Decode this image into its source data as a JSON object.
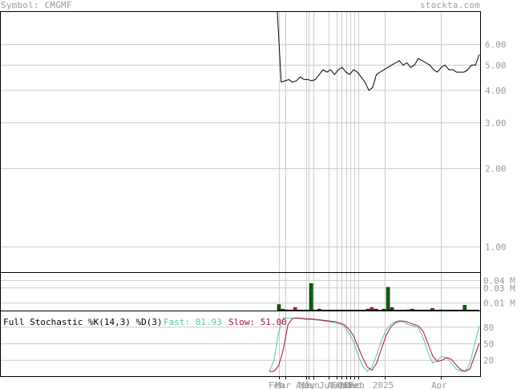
{
  "header": {
    "symbol_label": "Symbol: CMGMF",
    "site": "stockta.com"
  },
  "colors": {
    "grid": "#cccccc",
    "axis_text": "#999999",
    "frame": "#000000",
    "price_line": "#000000",
    "vol_up": "#006400",
    "vol_down": "#ff0000",
    "stoch_fast": "#5bbfb5",
    "stoch_slow": "#a0103a"
  },
  "chart_data": [
    {
      "type": "line",
      "name": "price",
      "scale": "log",
      "ylim": [
        0.8,
        8
      ],
      "y_ticks": [
        1.0,
        2.0,
        3.0,
        4.0,
        5.0,
        6.0
      ],
      "y_tick_labels": [
        "1.00",
        "2.00",
        "3.00",
        "4.00",
        "5.00",
        "6.00"
      ],
      "x_labels": [
        "Feb",
        "Mar",
        "Apr",
        "May",
        "Jun",
        "Jul",
        "Aug",
        "Sep",
        "Oct",
        "Nov",
        "Dec",
        "Feb",
        "2025",
        "Apr"
      ],
      "series": [
        {
          "values": [
            8.0,
            4.3,
            4.35,
            4.4,
            4.3,
            4.35,
            4.5,
            4.4,
            4.4,
            4.35,
            4.4,
            4.6,
            4.8,
            4.7,
            4.8,
            4.6,
            4.8,
            4.9,
            4.7,
            4.6,
            4.8,
            4.7,
            4.5,
            4.3,
            4.0,
            4.1,
            4.6,
            4.7,
            4.8,
            4.9,
            5.0,
            5.1,
            5.2,
            5.0,
            5.1,
            4.9,
            5.0,
            5.3,
            5.2,
            5.1,
            5.0,
            4.8,
            4.7,
            4.9,
            5.0,
            4.8,
            4.8,
            4.7,
            4.7,
            4.7,
            4.8,
            5.0,
            5.0,
            5.5
          ]
        }
      ]
    },
    {
      "type": "bar",
      "name": "volume",
      "ylim": [
        0,
        0.05
      ],
      "y_ticks": [
        0.01,
        0.03,
        0.04
      ],
      "y_tick_labels": [
        "0.01 M",
        "0.03 M",
        "0.04 M"
      ],
      "bars": [
        {
          "x": 0,
          "v": 0.008,
          "up": true
        },
        {
          "x": 1,
          "v": 0.002,
          "up": true
        },
        {
          "x": 2,
          "v": 0.001,
          "up": true
        },
        {
          "x": 4,
          "v": 0.004,
          "up": false
        },
        {
          "x": 8,
          "v": 0.036,
          "up": true
        },
        {
          "x": 10,
          "v": 0.002,
          "up": true
        },
        {
          "x": 22,
          "v": 0.002,
          "up": false
        },
        {
          "x": 23,
          "v": 0.004,
          "up": false
        },
        {
          "x": 24,
          "v": 0.002,
          "up": true
        },
        {
          "x": 26,
          "v": 0.002,
          "up": false
        },
        {
          "x": 27,
          "v": 0.031,
          "up": true
        },
        {
          "x": 28,
          "v": 0.004,
          "up": true
        },
        {
          "x": 32,
          "v": 0.001,
          "up": false
        },
        {
          "x": 33,
          "v": 0.002,
          "up": false
        },
        {
          "x": 38,
          "v": 0.003,
          "up": false
        },
        {
          "x": 40,
          "v": 0.001,
          "up": true
        },
        {
          "x": 46,
          "v": 0.007,
          "up": true
        }
      ]
    },
    {
      "type": "line",
      "name": "stochastic",
      "title": "Full Stochastic %K(14,3) %D(3)",
      "fast_label": "Fast: 81.93",
      "slow_label": "Slow: 51.00",
      "ylim": [
        0,
        100
      ],
      "y_ticks": [
        20,
        50,
        80
      ],
      "y_tick_labels": [
        "20",
        "50",
        "80"
      ],
      "series": [
        {
          "name": "Fast",
          "values": [
            0,
            20,
            70,
            97,
            97,
            96,
            96,
            95,
            94,
            94,
            93,
            92,
            91,
            90,
            88,
            86,
            82,
            70,
            55,
            30,
            10,
            0,
            8,
            30,
            55,
            75,
            85,
            90,
            92,
            88,
            84,
            82,
            78,
            60,
            35,
            15,
            20,
            27,
            25,
            15,
            5,
            0,
            0,
            15,
            50,
            81.93
          ]
        },
        {
          "name": "Slow",
          "values": [
            0,
            0,
            10,
            40,
            85,
            96,
            97,
            96,
            95,
            95,
            94,
            93,
            92,
            91,
            90,
            88,
            85,
            77,
            65,
            45,
            25,
            8,
            2,
            15,
            40,
            65,
            80,
            88,
            91,
            91,
            88,
            85,
            82,
            72,
            50,
            28,
            18,
            20,
            25,
            22,
            12,
            3,
            0,
            5,
            28,
            51.0
          ]
        }
      ]
    }
  ]
}
